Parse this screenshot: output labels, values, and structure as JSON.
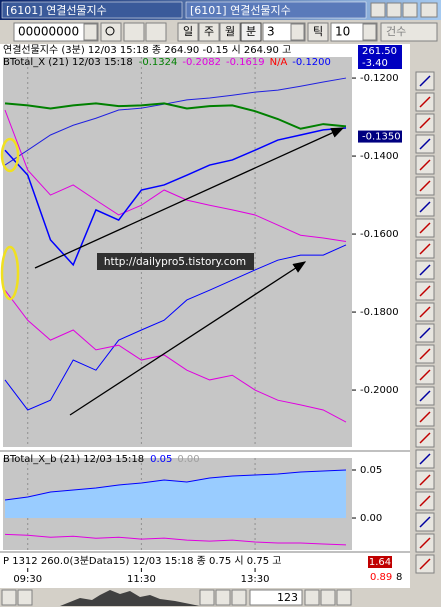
{
  "window": {
    "tabs": [
      "[6101] 연결선물지수",
      "[6101] 연결선물지수"
    ]
  },
  "toolbar": {
    "code": "00000000",
    "buttons": [
      "일",
      "주",
      "월",
      "분"
    ],
    "period": "3",
    "unit": "틱",
    "count": "10",
    "mode": "건수"
  },
  "chart_data": [
    {
      "type": "line",
      "price_header": "연결선물지수 (3분) 12/03 15:18 종 264.90 -0.15 시 264.90 고",
      "title": "BTotal_X  (21) 12/03 15:18",
      "legend_values": [
        {
          "text": "-0.1324",
          "color": "#008000"
        },
        {
          "text": "-0.2082",
          "color": "#e000e0"
        },
        {
          "text": "-0.1619",
          "color": "#e000e0"
        },
        {
          "text": "N/A",
          "color": "#ff0000"
        },
        {
          "text": "-0.1200",
          "color": "#0000ff"
        }
      ],
      "x": [
        0,
        1,
        2,
        3,
        4,
        5,
        6,
        7,
        8,
        9,
        10,
        11,
        12,
        13,
        14,
        15
      ],
      "xlim": [
        0,
        15
      ],
      "xticks": [
        {
          "value": 1,
          "label": "09:30"
        },
        {
          "value": 6,
          "label": "11:30"
        },
        {
          "value": 11,
          "label": "13:30"
        }
      ],
      "ylim": [
        -0.2146,
        -0.1146
      ],
      "yticks": [
        {
          "value": -0.12,
          "label": "-0.1200"
        },
        {
          "value": -0.14,
          "label": "-0.1400"
        },
        {
          "value": -0.16,
          "label": "-0.1600"
        },
        {
          "value": -0.18,
          "label": "-0.1800"
        },
        {
          "value": -0.2,
          "label": "-0.2000"
        }
      ],
      "series": [
        {
          "color": "#2020e0",
          "width": 1,
          "values": [
            -0.1423,
            -0.1385,
            -0.1346,
            -0.1321,
            -0.1303,
            -0.1282,
            -0.1277,
            -0.1267,
            -0.1256,
            -0.1251,
            -0.1244,
            -0.1236,
            -0.1231,
            -0.1221,
            -0.121,
            -0.12
          ]
        },
        {
          "color": "#008000",
          "width": 2,
          "values": [
            -0.1265,
            -0.127,
            -0.1278,
            -0.127,
            -0.1265,
            -0.1272,
            -0.127,
            -0.1265,
            -0.1278,
            -0.1272,
            -0.127,
            -0.1285,
            -0.1305,
            -0.133,
            -0.1318,
            -0.1324
          ]
        },
        {
          "color": "#e000e0",
          "width": 1,
          "values": [
            -0.1282,
            -0.1436,
            -0.15,
            -0.1474,
            -0.1513,
            -0.1551,
            -0.1526,
            -0.1487,
            -0.1513,
            -0.1526,
            -0.1538,
            -0.1551,
            -0.1577,
            -0.1603,
            -0.161,
            -0.1619
          ]
        },
        {
          "color": "#0000ff",
          "width": 1.5,
          "values": [
            -0.1385,
            -0.1449,
            -0.1615,
            -0.1679,
            -0.1538,
            -0.1564,
            -0.1487,
            -0.1474,
            -0.1449,
            -0.1423,
            -0.141,
            -0.1385,
            -0.1359,
            -0.1346,
            -0.1333,
            -0.1328
          ]
        },
        {
          "color": "#0000ff",
          "width": 1,
          "values": [
            -0.1974,
            -0.2051,
            -0.2026,
            -0.1923,
            -0.1949,
            -0.1872,
            -0.1846,
            -0.1821,
            -0.1769,
            -0.1744,
            -0.1718,
            -0.1692,
            -0.1667,
            -0.1654,
            -0.1654,
            -0.1628
          ]
        },
        {
          "color": "#e000e0",
          "width": 1,
          "values": [
            -0.1744,
            -0.1821,
            -0.1872,
            -0.1846,
            -0.1897,
            -0.1885,
            -0.1923,
            -0.191,
            -0.1949,
            -0.1974,
            -0.1962,
            -0.2,
            -0.2026,
            -0.2038,
            -0.2051,
            -0.2082
          ]
        }
      ],
      "markers": [
        {
          "label": "261.50",
          "color": "#0000c0"
        },
        {
          "label": "-3.40",
          "color": "#0000c0"
        },
        {
          "value": -0.135,
          "label": "-0.1350",
          "color": "#000080"
        }
      ],
      "annotation": "http://dailypro5.tistory.com"
    },
    {
      "type": "line",
      "title": "BTotal_X_b  (21) 12/03 15:18",
      "legend_values": [
        {
          "text": "0.05",
          "color": "#0000ff"
        },
        {
          "text": "0.00",
          "color": "#a0a0a0"
        }
      ],
      "x": [
        0,
        1,
        2,
        3,
        4,
        5,
        6,
        7,
        8,
        9,
        10,
        11,
        12,
        13,
        14,
        15
      ],
      "xlim": [
        0,
        15
      ],
      "ylim": [
        -0.0333,
        0.0625
      ],
      "yticks": [
        {
          "value": 0.05,
          "label": "0.05"
        },
        {
          "value": 0,
          "label": "0.00"
        }
      ],
      "series": [
        {
          "color": "#0000ff",
          "width": 1,
          "fill": "#99ccff",
          "values": [
            0.0188,
            0.0219,
            0.0271,
            0.0292,
            0.0313,
            0.0344,
            0.0365,
            0.0396,
            0.0375,
            0.0417,
            0.0438,
            0.0448,
            0.0458,
            0.0479,
            0.049,
            0.05
          ]
        },
        {
          "color": "#e000e0",
          "width": 1,
          "values": [
            -0.017,
            -0.018,
            -0.02,
            -0.019,
            -0.021,
            -0.02,
            -0.022,
            -0.021,
            -0.023,
            -0.024,
            -0.023,
            -0.025,
            -0.026,
            -0.026,
            -0.027,
            -0.028
          ]
        }
      ]
    }
  ],
  "footer": {
    "info": "P 1312 260.0(3분Data15) 12/03 15:18 종 0.75 시 0.75 고",
    "box_high": "1.64",
    "box_low": "0.89",
    "side": "8",
    "scroll_value": "123"
  }
}
